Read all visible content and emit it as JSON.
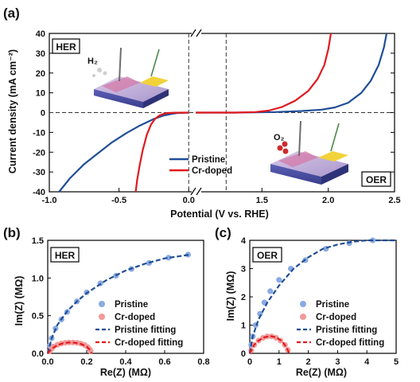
{
  "colors": {
    "pristine": "#1f4e96",
    "cr_doped": "#e0191e",
    "pristine_marker": "#8aaae0",
    "cr_doped_marker": "#f29a9a",
    "fit_pristine": "#1f4e96",
    "fit_cr": "#e0191e"
  },
  "panels": {
    "a": {
      "label": "(a)",
      "ylabel": "Current density (mA cm⁻²)",
      "xlabel": "Potential (V vs. RHE)",
      "her_tag": "HER",
      "oer_tag": "OER",
      "h2_label": "H₂",
      "o2_label": "O₂",
      "legend": [
        "Pristine",
        "Cr-doped"
      ]
    },
    "b": {
      "label": "(b)",
      "tag": "HER",
      "ylabel": "Im(Z) (MΩ)",
      "xlabel": "Re(Z) (MΩ)",
      "legend": [
        "Pristine",
        "Cr-doped",
        "Pristine fitting",
        "Cr-doped fitting"
      ]
    },
    "c": {
      "label": "(c)",
      "tag": "OER",
      "ylabel": "Im(Z) (MΩ)",
      "xlabel": "Re(Z) (MΩ)",
      "legend": [
        "Pristine",
        "Cr-doped",
        "Pristine fitting",
        "Cr-doped fitting"
      ]
    }
  },
  "chart_data": [
    {
      "id": "a",
      "type": "line",
      "xlabel": "Potential (V vs. RHE)",
      "ylabel": "Current density (mA cm⁻²)",
      "axis_break": true,
      "ylim": [
        -40,
        40
      ],
      "yticks": [
        -40,
        -30,
        -20,
        -10,
        0,
        10,
        20,
        30,
        40
      ],
      "left_segment": {
        "xlim": [
          -1.0,
          0.05
        ],
        "xticks": [
          -1.0,
          -0.5,
          0.0
        ],
        "xtick_labels": [
          "-1.0",
          "-0.5",
          "0.0"
        ]
      },
      "right_segment": {
        "xlim": [
          1.0,
          2.5
        ],
        "xticks": [
          1.0,
          1.5,
          2.0,
          2.5
        ],
        "xtick_labels": [
          "",
          "1.5",
          "2.0",
          "2.5"
        ]
      },
      "reference_lines": {
        "horizontal_y": 0,
        "vertical_x": [
          0.0,
          1.23
        ]
      },
      "series": [
        {
          "name": "Pristine",
          "segment": "HER",
          "x": [
            -0.93,
            -0.85,
            -0.75,
            -0.65,
            -0.55,
            -0.45,
            -0.35,
            -0.25,
            -0.18,
            -0.12,
            -0.08,
            0.0
          ],
          "y": [
            -40,
            -33,
            -26,
            -20.5,
            -15,
            -10.5,
            -6.5,
            -3.2,
            -1.5,
            -0.6,
            -0.2,
            0
          ]
        },
        {
          "name": "Cr-doped",
          "segment": "HER",
          "x": [
            -0.38,
            -0.37,
            -0.35,
            -0.33,
            -0.3,
            -0.27,
            -0.24,
            -0.21,
            -0.18,
            -0.15,
            -0.1,
            0.0
          ],
          "y": [
            -40,
            -34,
            -26,
            -19,
            -11,
            -6,
            -3,
            -1.5,
            -0.6,
            -0.2,
            -0.05,
            0
          ]
        },
        {
          "name": "Pristine",
          "segment": "OER",
          "x": [
            1.0,
            1.3,
            1.6,
            1.8,
            1.95,
            2.05,
            2.15,
            2.25,
            2.32,
            2.38,
            2.42,
            2.44
          ],
          "y": [
            0,
            0,
            0.3,
            0.8,
            1.5,
            2.6,
            5,
            10,
            16,
            24,
            33,
            40
          ]
        },
        {
          "name": "Cr-doped",
          "segment": "OER",
          "x": [
            1.0,
            1.3,
            1.45,
            1.55,
            1.65,
            1.75,
            1.85,
            1.92,
            1.97,
            2.0,
            2.02
          ],
          "y": [
            0,
            0,
            0.3,
            1,
            2.8,
            6,
            11,
            17,
            24,
            32,
            40
          ]
        }
      ]
    },
    {
      "id": "b",
      "type": "scatter",
      "xlabel": "Re(Z) (MΩ)",
      "ylabel": "Im(Z) (MΩ)",
      "xlim": [
        0,
        0.8
      ],
      "ylim": [
        0,
        1.5
      ],
      "xticks": [
        0.0,
        0.2,
        0.4,
        0.6,
        0.8
      ],
      "yticks": [
        0.0,
        0.5,
        1.0,
        1.5
      ],
      "series": [
        {
          "name": "Pristine",
          "style": "points",
          "x": [
            0.01,
            0.02,
            0.04,
            0.07,
            0.1,
            0.15,
            0.2,
            0.27,
            0.35,
            0.43,
            0.52,
            0.62,
            0.72
          ],
          "y": [
            0.1,
            0.2,
            0.33,
            0.45,
            0.55,
            0.69,
            0.81,
            0.93,
            1.03,
            1.12,
            1.2,
            1.27,
            1.31
          ]
        },
        {
          "name": "Cr-doped",
          "style": "points",
          "x": [
            0.01,
            0.02,
            0.03,
            0.05,
            0.07,
            0.09,
            0.11,
            0.13,
            0.15,
            0.17,
            0.19,
            0.205,
            0.215,
            0.22
          ],
          "y": [
            0.03,
            0.06,
            0.09,
            0.115,
            0.13,
            0.14,
            0.145,
            0.145,
            0.14,
            0.13,
            0.11,
            0.085,
            0.055,
            0.03
          ]
        },
        {
          "name": "Pristine fitting",
          "style": "dashed",
          "x": [
            0.0,
            0.02,
            0.05,
            0.1,
            0.15,
            0.2,
            0.3,
            0.4,
            0.5,
            0.6,
            0.73
          ],
          "y": [
            0.0,
            0.2,
            0.38,
            0.56,
            0.69,
            0.8,
            0.97,
            1.1,
            1.19,
            1.26,
            1.31
          ]
        },
        {
          "name": "Cr-doped fitting",
          "style": "dashed",
          "x": [
            0.0,
            0.02,
            0.05,
            0.08,
            0.11,
            0.14,
            0.17,
            0.2,
            0.215,
            0.225
          ],
          "y": [
            0.0,
            0.06,
            0.11,
            0.135,
            0.145,
            0.14,
            0.125,
            0.09,
            0.05,
            0.0
          ]
        }
      ]
    },
    {
      "id": "c",
      "type": "scatter",
      "xlabel": "Re(Z) (MΩ)",
      "ylabel": "Im(Z) (MΩ)",
      "xlim": [
        0,
        5
      ],
      "ylim": [
        0,
        4
      ],
      "xticks": [
        0,
        1,
        2,
        3,
        4,
        5
      ],
      "yticks": [
        0,
        1,
        2,
        3,
        4
      ],
      "series": [
        {
          "name": "Pristine",
          "style": "points",
          "x": [
            0.05,
            0.1,
            0.2,
            0.35,
            0.5,
            0.7,
            1.0,
            1.4,
            1.9,
            2.6,
            3.4,
            4.2
          ],
          "y": [
            0.3,
            0.6,
            1.0,
            1.4,
            1.8,
            2.2,
            2.6,
            3.0,
            3.3,
            3.7,
            3.9,
            4.0
          ]
        },
        {
          "name": "Cr-doped",
          "style": "points",
          "x": [
            0.05,
            0.15,
            0.3,
            0.45,
            0.6,
            0.75,
            0.9,
            1.05,
            1.2,
            1.3
          ],
          "y": [
            0.1,
            0.3,
            0.45,
            0.55,
            0.6,
            0.6,
            0.55,
            0.45,
            0.3,
            0.12
          ]
        },
        {
          "name": "Pristine fitting",
          "style": "dashed",
          "x": [
            0.0,
            0.1,
            0.3,
            0.6,
            1.0,
            1.5,
            2.0,
            2.5,
            3.0,
            3.5,
            4.0,
            4.5,
            5.0
          ],
          "y": [
            0.0,
            0.6,
            1.2,
            1.8,
            2.4,
            3.0,
            3.4,
            3.7,
            3.85,
            3.95,
            4.0,
            4.0,
            4.0
          ]
        },
        {
          "name": "Cr-doped fitting",
          "style": "dashed",
          "x": [
            0.0,
            0.15,
            0.3,
            0.5,
            0.7,
            0.9,
            1.1,
            1.25,
            1.35
          ],
          "y": [
            0.0,
            0.3,
            0.45,
            0.57,
            0.61,
            0.57,
            0.43,
            0.22,
            0.0
          ]
        }
      ]
    }
  ]
}
